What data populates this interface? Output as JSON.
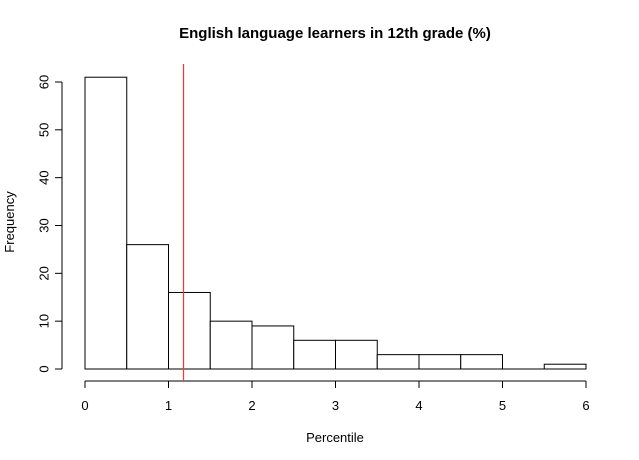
{
  "chart_data": {
    "type": "bar",
    "title": "English language learners in 12th grade (%)",
    "xlabel": "Percentile",
    "ylabel": "Frequency",
    "bin_edges": [
      0,
      0.5,
      1,
      1.5,
      2,
      2.5,
      3,
      3.5,
      4,
      4.5,
      5,
      5.5,
      6
    ],
    "values": [
      61,
      26,
      16,
      10,
      9,
      6,
      6,
      3,
      3,
      3,
      0,
      1
    ],
    "xlim": [
      0,
      6
    ],
    "ylim": [
      0,
      60
    ],
    "x_ticks": [
      0,
      1,
      2,
      3,
      4,
      5,
      6
    ],
    "y_ticks": [
      0,
      10,
      20,
      30,
      40,
      50,
      60
    ],
    "reference_line": {
      "x": 1.18,
      "color": "#ff3333"
    },
    "grid": false,
    "bar_fill": "#ffffff",
    "bar_stroke": "#000000"
  }
}
